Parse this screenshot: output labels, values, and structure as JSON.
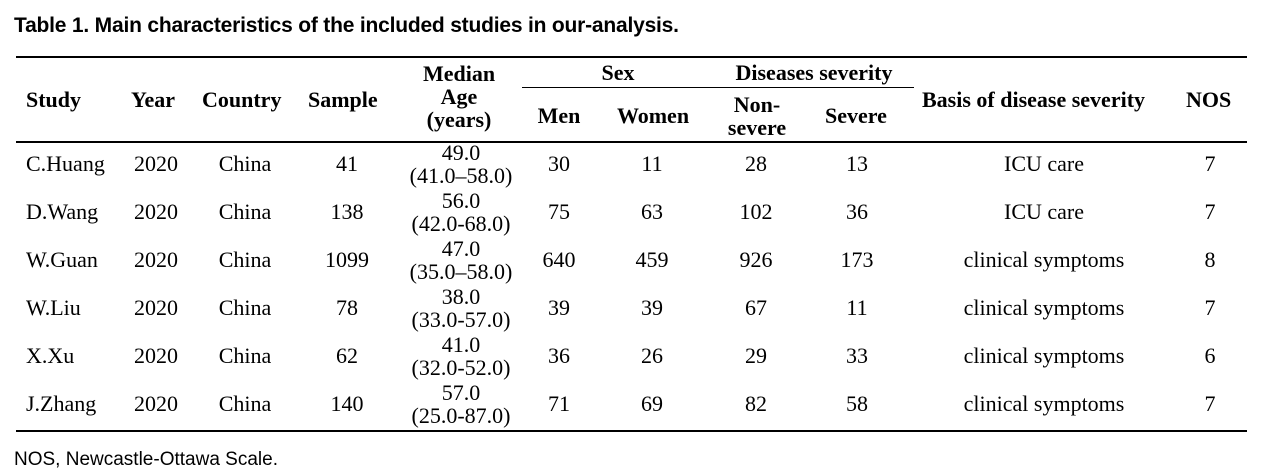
{
  "caption": "Table 1. Main characteristics of the included studies in our-analysis.",
  "headers": {
    "study": "Study",
    "year": "Year",
    "country": "Country",
    "sample": "Sample",
    "age_line1": "Median",
    "age_line2": "Age",
    "age_line3": "(years)",
    "sex": "Sex",
    "men": "Men",
    "women": "Women",
    "severity": "Diseases severity",
    "nonsevere_line1": "Non-",
    "nonsevere_line2": "severe",
    "severe": "Severe",
    "basis": "Basis of disease severity",
    "nos": "NOS"
  },
  "rows": [
    {
      "study": "C.Huang",
      "year": "2020",
      "country": "China",
      "sample": "41",
      "age_median": "49.0",
      "age_range": "(41.0–58.0)",
      "men": "30",
      "women": "11",
      "nonsevere": "28",
      "severe": "13",
      "basis": "ICU care",
      "nos": "7"
    },
    {
      "study": "D.Wang",
      "year": "2020",
      "country": "China",
      "sample": "138",
      "age_median": "56.0",
      "age_range": "(42.0-68.0)",
      "men": "75",
      "women": "63",
      "nonsevere": "102",
      "severe": "36",
      "basis": "ICU care",
      "nos": "7"
    },
    {
      "study": "W.Guan",
      "year": "2020",
      "country": "China",
      "sample": "1099",
      "age_median": "47.0",
      "age_range": "(35.0–58.0)",
      "men": "640",
      "women": "459",
      "nonsevere": "926",
      "severe": "173",
      "basis": "clinical symptoms",
      "nos": "8"
    },
    {
      "study": "W.Liu",
      "year": "2020",
      "country": "China",
      "sample": "78",
      "age_median": "38.0",
      "age_range": "(33.0-57.0)",
      "men": "39",
      "women": "39",
      "nonsevere": "67",
      "severe": "11",
      "basis": "clinical symptoms",
      "nos": "7"
    },
    {
      "study": "X.Xu",
      "year": "2020",
      "country": "China",
      "sample": "62",
      "age_median": "41.0",
      "age_range": "(32.0-52.0)",
      "men": "36",
      "women": "26",
      "nonsevere": "29",
      "severe": "33",
      "basis": "clinical symptoms",
      "nos": "6"
    },
    {
      "study": "J.Zhang",
      "year": "2020",
      "country": "China",
      "sample": "140",
      "age_median": "57.0",
      "age_range": "(25.0-87.0)",
      "men": "71",
      "women": "69",
      "nonsevere": "82",
      "severe": "58",
      "basis": "clinical symptoms",
      "nos": "7"
    }
  ],
  "footnote": "NOS, Newcastle-Ottawa Scale."
}
